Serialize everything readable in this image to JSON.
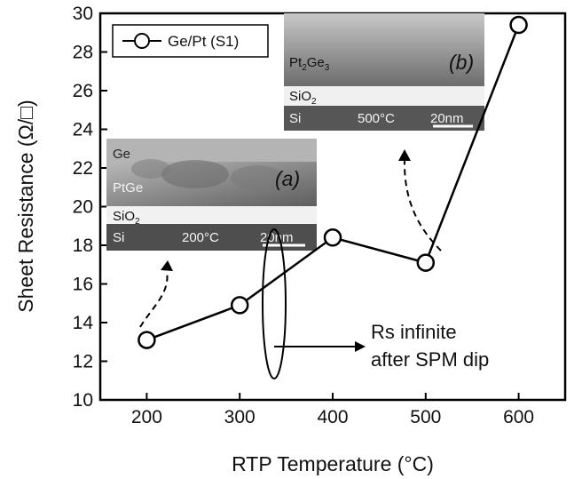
{
  "chart_data": {
    "type": "line",
    "xlabel": "RTP Temperature (°C)",
    "ylabel": "Sheet Resistance (Ω/□)",
    "xlim": [
      150,
      650
    ],
    "ylim": [
      10,
      30
    ],
    "xticks": [
      "200",
      "300",
      "400",
      "500",
      "600"
    ],
    "yticks": [
      "10",
      "12",
      "14",
      "16",
      "18",
      "20",
      "22",
      "24",
      "26",
      "28",
      "30"
    ],
    "legend_position": "top-left",
    "series": [
      {
        "name": "Ge/Pt (S1)",
        "marker": "open-circle",
        "color": "#000000",
        "x": [
          200,
          300,
          400,
          500,
          600
        ],
        "y": [
          13.1,
          14.9,
          18.4,
          17.1,
          29.4
        ]
      }
    ],
    "annotations": {
      "rs_note_line1": "Rs infinite",
      "rs_note_line2": "after SPM dip"
    },
    "inset_a": {
      "label": "(a)",
      "layers": [
        "Ge",
        "PtGe",
        "SiO2",
        "Si"
      ],
      "temperature": "200°C",
      "scale": "20nm"
    },
    "inset_b": {
      "label": "(b)",
      "layers": [
        "Pt2Ge3",
        "SiO2",
        "Si"
      ],
      "temperature": "500°C",
      "scale": "20nm"
    }
  }
}
